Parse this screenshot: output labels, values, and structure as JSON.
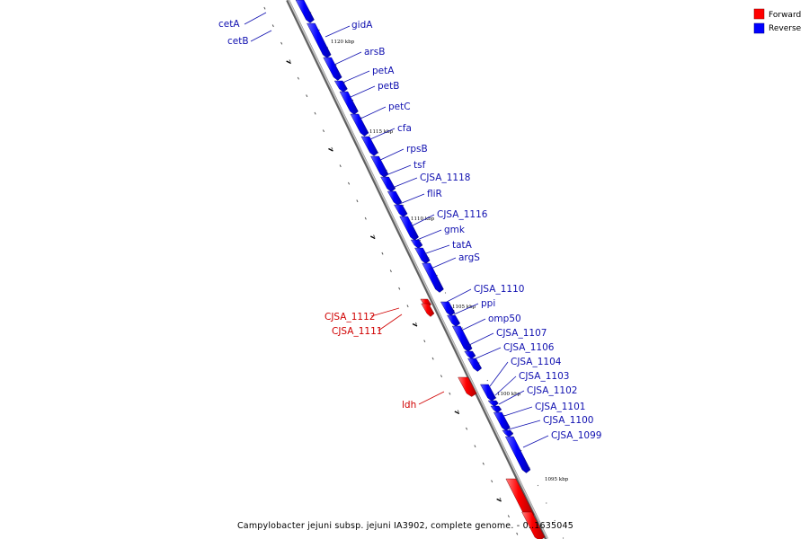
{
  "caption": "Campylobacter jejuni subsp. jejuni IA3902, complete genome. - 0..1635045",
  "legend": [
    {
      "label": "Forward",
      "color": "#ff0000"
    },
    {
      "label": "Reverse",
      "color": "#0000ff"
    }
  ],
  "colors": {
    "forward": "#ff0000",
    "reverse": "#0000ff",
    "forward_label": "#d00000",
    "reverse_label": "#1010b0",
    "backbone": "#9a9a9a"
  },
  "scale_labels": [
    "1120 kbp",
    "1115 kbp",
    "1110 kbp",
    "1105 kbp",
    "1100 kbp",
    "1095 kbp"
  ],
  "reverse_genes": [
    "cetA",
    "cetB",
    "gidA",
    "arsB",
    "petA",
    "petB",
    "petC",
    "cfa",
    "rpsB",
    "tsf",
    "CJSA_1118",
    "fliR",
    "CJSA_1116",
    "gmk",
    "tatA",
    "argS",
    "CJSA_1110",
    "ppi",
    "omp50",
    "CJSA_1107",
    "CJSA_1106",
    "CJSA_1104",
    "CJSA_1103",
    "CJSA_1102",
    "CJSA_1101",
    "CJSA_1100",
    "CJSA_1099"
  ],
  "forward_genes": [
    "CJSA_1112",
    "CJSA_1111",
    "ldh"
  ]
}
